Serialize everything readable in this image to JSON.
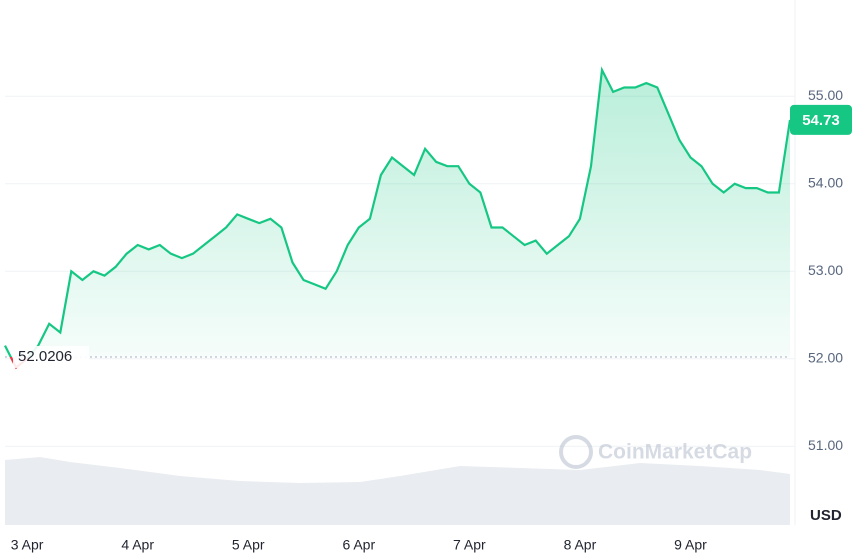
{
  "chart_data": {
    "type": "line",
    "categories": [
      null,
      null,
      "3 Apr",
      null,
      null,
      null,
      null,
      null,
      null,
      null,
      null,
      null,
      "4 Apr",
      null,
      null,
      null,
      null,
      null,
      null,
      null,
      null,
      null,
      "5 Apr",
      null,
      null,
      null,
      null,
      null,
      null,
      null,
      null,
      null,
      "6 Apr",
      null,
      null,
      null,
      null,
      null,
      null,
      null,
      null,
      null,
      "7 Apr",
      null,
      null,
      null,
      null,
      null,
      null,
      null,
      null,
      null,
      "8 Apr",
      null,
      null,
      null,
      null,
      null,
      null,
      null,
      null,
      null,
      "9 Apr",
      null,
      null,
      null,
      null,
      null,
      null,
      null,
      null,
      null
    ],
    "values": [
      52.15,
      51.9,
      52.0,
      52.15,
      52.4,
      52.3,
      53.0,
      52.9,
      53.0,
      52.95,
      53.05,
      53.2,
      53.3,
      53.25,
      53.3,
      53.2,
      53.15,
      53.2,
      53.3,
      53.4,
      53.5,
      53.65,
      53.6,
      53.55,
      53.6,
      53.5,
      53.1,
      52.9,
      52.85,
      52.8,
      53.0,
      53.3,
      53.5,
      53.6,
      54.1,
      54.3,
      54.2,
      54.1,
      54.4,
      54.25,
      54.2,
      54.2,
      54.0,
      53.9,
      53.5,
      53.5,
      53.4,
      53.3,
      53.35,
      53.2,
      53.3,
      53.4,
      53.6,
      54.2,
      55.3,
      55.05,
      55.1,
      55.1,
      55.15,
      55.1,
      54.8,
      54.5,
      54.3,
      54.2,
      54.0,
      53.9,
      54.0,
      53.95,
      53.95,
      53.9,
      53.9,
      54.73
    ],
    "color": "#16c784",
    "down_color": "#ea3943",
    "baseline": 52.0206,
    "ylim": [
      50.1,
      56.1
    ],
    "yticks": [
      {
        "value": 51,
        "label": "51.00"
      },
      {
        "value": 52,
        "label": "52.00"
      },
      {
        "value": 53,
        "label": "53.00"
      },
      {
        "value": 54,
        "label": "54.00"
      },
      {
        "value": 55,
        "label": "55.00"
      }
    ],
    "grid": true,
    "currency": "USD",
    "watermark": "CoinMarketCap"
  }
}
